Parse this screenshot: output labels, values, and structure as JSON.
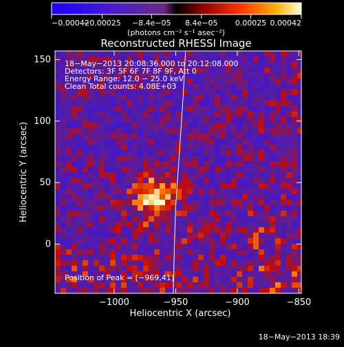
{
  "chart_data": {
    "type": "heatmap",
    "title": "Reconstructed RHESSI Image",
    "xlabel": "Heliocentric X (arcsec)",
    "ylabel": "Heliocentric Y (arcsec)",
    "xlim": [
      -1048,
      -848
    ],
    "ylim": [
      -40,
      157
    ],
    "x_ticks": [
      -1000,
      -950,
      -900,
      -850
    ],
    "x_tick_labels": [
      "−1000",
      "−950",
      "−900",
      "−850"
    ],
    "y_ticks": [
      0,
      50,
      100,
      150
    ],
    "y_tick_labels": [
      "0",
      "50",
      "100",
      "150"
    ],
    "grid": false,
    "annotations": [
      "18−May−2013 20:08:36.000 to 20:12:08.000",
      "Detectors: 3F 5F 6F 7F 8F 9F, Att 0",
      "Energy Range: 12.0 − 25.0 keV",
      "Clean     Total counts: 4.08E+03"
    ],
    "peak_label": "Position of Peak = [−969,41]",
    "peak": {
      "x": -969,
      "y": 41
    },
    "limb_curve": [
      [
        -942,
        157
      ],
      [
        -944,
        120
      ],
      [
        -946,
        90
      ],
      [
        -948,
        60
      ],
      [
        -950,
        30
      ],
      [
        -951,
        0
      ],
      [
        -952,
        -40
      ]
    ],
    "colorbar": {
      "range": [
        -0.00042,
        0.00042
      ],
      "ticks": [
        -0.00042,
        -0.00025,
        -8.4e-05,
        8.4e-05,
        0.00025,
        0.00042
      ],
      "tick_labels": [
        "−0.00042",
        "−0.00025",
        "−8.4e−05",
        "8.4e−05",
        "0.00025",
        "0.00042"
      ],
      "unit_label": "(photons cm⁻² s⁻¹ asec⁻²)"
    }
  },
  "footer": {
    "timestamp": "18−May−2013 18:39"
  }
}
